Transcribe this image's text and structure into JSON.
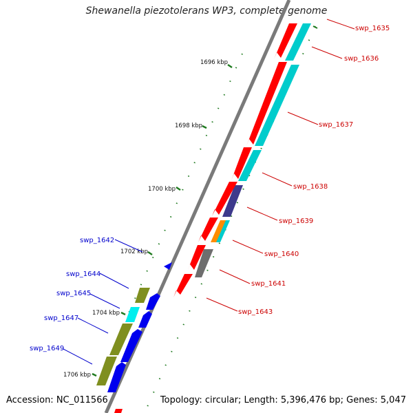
{
  "title": "Shewanella piezotolerans WP3, complete genome",
  "footer": {
    "accession": "Accession: NC_011566",
    "summary": "Topology: circular; Length: 5,396,476 bp; Genes: 5,047"
  },
  "colors": {
    "backbone": "#7a7a7a",
    "tick": "#1f7a1f",
    "cds_forward": "#ff0000",
    "cog_outer": "#00cccc",
    "cds_reverse": "#0000ee",
    "cog_olive": "#7f8f1f",
    "label_forward": "#cc0000",
    "label_reverse": "#0000cc"
  },
  "ruler": [
    {
      "label": "1696 kbp"
    },
    {
      "label": "1698 kbp"
    },
    {
      "label": "1700 kbp"
    },
    {
      "label": "1702 kbp"
    },
    {
      "label": "1704 kbp"
    },
    {
      "label": "1706 kbp"
    }
  ],
  "labels_forward": [
    "swp_1635",
    "swp_1636",
    "swp_1637",
    "swp_1638",
    "swp_1639",
    "swp_1640",
    "swp_1641",
    "swp_1643"
  ],
  "labels_reverse": [
    "swp_1642",
    "swp_1644",
    "swp_1645",
    "swp_1647",
    "swp_1649"
  ]
}
